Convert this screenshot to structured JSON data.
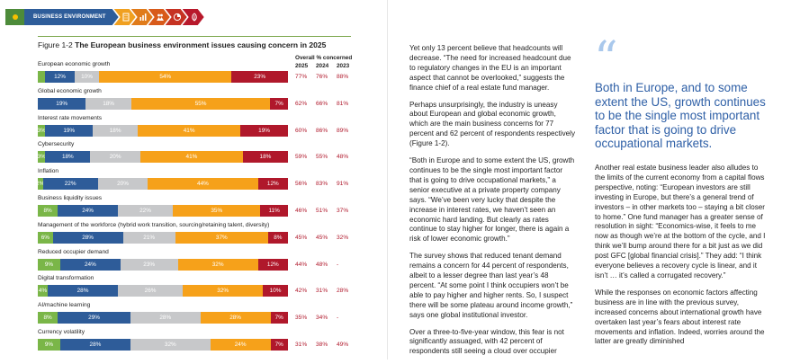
{
  "nav": {
    "label": "BUSINESS ENVIRONMENT",
    "chevrons": [
      {
        "icon": "building-icon",
        "color": "#f0a020"
      },
      {
        "icon": "chart-bars-icon",
        "color": "#e07b1a"
      },
      {
        "icon": "people-icon",
        "color": "#d85a1a"
      },
      {
        "icon": "pie-chart-icon",
        "color": "#c63222"
      },
      {
        "icon": "leaf-icon",
        "color": "#b8182b"
      }
    ]
  },
  "figure": {
    "number": "Figure 1-2",
    "title": "The European business environment issues causing concern in 2025",
    "overall_label": "Overall % concerned",
    "years": [
      "2025",
      "2024",
      "2023"
    ]
  },
  "chart_data": {
    "type": "bar",
    "stacked": true,
    "title": "The European business environment issues causing concern in 2025",
    "segment_colors": [
      "#7ab648",
      "#2e5c99",
      "#c7c8ca",
      "#f6a11a",
      "#b0182b"
    ],
    "categories": [
      {
        "label": "European economic growth",
        "segments": [
          3,
          12,
          10,
          54,
          23
        ],
        "labels": [
          "",
          "12%",
          "10%",
          "54%",
          "23%"
        ],
        "overall": [
          "77%",
          "76%",
          "88%"
        ]
      },
      {
        "label": "Global economic growth",
        "segments": [
          0,
          19,
          18,
          55,
          7
        ],
        "labels": [
          "",
          "19%",
          "18%",
          "55%",
          "7%"
        ],
        "overall": [
          "62%",
          "66%",
          "81%"
        ]
      },
      {
        "label": "Interest rate movements",
        "segments": [
          3,
          19,
          18,
          41,
          19
        ],
        "labels": [
          "3%",
          "19%",
          "18%",
          "41%",
          "19%"
        ],
        "overall": [
          "60%",
          "86%",
          "89%"
        ]
      },
      {
        "label": "Cybersecurity",
        "segments": [
          3,
          18,
          20,
          41,
          18
        ],
        "labels": [
          "3%",
          "18%",
          "20%",
          "41%",
          "18%"
        ],
        "overall": [
          "59%",
          "55%",
          "48%"
        ]
      },
      {
        "label": "Inflation",
        "segments": [
          2,
          22,
          20,
          44,
          12
        ],
        "labels": [
          "2%",
          "22%",
          "20%",
          "44%",
          "12%"
        ],
        "overall": [
          "56%",
          "83%",
          "91%"
        ]
      },
      {
        "label": "Business liquidity issues",
        "segments": [
          8,
          24,
          22,
          35,
          11
        ],
        "labels": [
          "8%",
          "24%",
          "22%",
          "35%",
          "11%"
        ],
        "overall": [
          "46%",
          "51%",
          "37%"
        ]
      },
      {
        "label": "Management of the workforce (hybrid work transition, sourcing/retaining talent, diversity)",
        "segments": [
          6,
          28,
          21,
          37,
          8
        ],
        "labels": [
          "6%",
          "28%",
          "21%",
          "37%",
          "8%"
        ],
        "overall": [
          "45%",
          "45%",
          "32%"
        ]
      },
      {
        "label": "Reduced occupier demand",
        "segments": [
          9,
          24,
          23,
          32,
          12
        ],
        "labels": [
          "9%",
          "24%",
          "23%",
          "32%",
          "12%"
        ],
        "overall": [
          "44%",
          "48%",
          "-"
        ]
      },
      {
        "label": "Digital transformation",
        "segments": [
          4,
          28,
          26,
          32,
          10
        ],
        "labels": [
          "4%",
          "28%",
          "26%",
          "32%",
          "10%"
        ],
        "overall": [
          "42%",
          "31%",
          "28%"
        ]
      },
      {
        "label": "AI/machine learning",
        "segments": [
          8,
          29,
          28,
          28,
          7
        ],
        "labels": [
          "8%",
          "29%",
          "28%",
          "28%",
          "7%"
        ],
        "overall": [
          "35%",
          "34%",
          "-"
        ]
      },
      {
        "label": "Currency volatility",
        "segments": [
          9,
          28,
          32,
          24,
          7
        ],
        "labels": [
          "9%",
          "28%",
          "32%",
          "24%",
          "7%"
        ],
        "overall": [
          "31%",
          "38%",
          "49%"
        ]
      }
    ]
  },
  "text": {
    "col1": [
      "Yet only 13 percent believe that headcounts will decrease. “The need for increased headcount due to regulatory changes in the EU is an important aspect that cannot be overlooked,” suggests the finance chief of a real estate fund manager.",
      "Perhaps unsurprisingly, the industry is uneasy about European and global economic growth, which are the main business concerns for 77 percent and 62 percent of respondents respectively (Figure 1-2).",
      "“Both in Europe and to some extent the US, growth continues to be the single most important factor that is going to drive occupational markets,” a senior executive at a private property company says. “We’ve been very lucky that despite the increase in interest rates, we haven’t seen an economic hard landing. But clearly as rates continue to stay higher for longer, there is again a risk of lower economic growth.”",
      "The survey shows that reduced tenant demand remains a concern for 44 percent of respondents, albeit to a lesser degree than last year’s 48 percent. “At some point I think occupiers won’t be able to pay higher and higher rents. So, I suspect there will be some plateau around income growth,” says one global institutional investor.",
      "Over a three-to-five-year window, this fear is not significantly assuaged, with 42 percent of respondents still seeing a cloud over occupier"
    ],
    "pull_quote": "Both in Europe, and to some extent the US, growth continues to be the single most important factor that is going to drive occupational markets.",
    "col2": [
      "Another real estate business leader also alludes to the limits of the current economy from a capital flows perspective, noting: “European investors are still investing in Europe, but there’s a general trend of investors – in other markets too – staying a bit closer to home.” One fund manager has a greater sense of resolution in sight: “Economics-wise, it feels to me now as though we’re at the bottom of the cycle, and I think we’ll bump around there for a bit just as we did post GFC [global financial crisis].” They add: “I think everyone believes a recovery cycle is linear, and it isn’t … it’s called a corrugated recovery.”",
      "While the responses on economic factors affecting business are in line with the previous survey, increased concerns about international growth have overtaken last year’s fears about interest rate movements and inflation. Indeed, worries around the latter are greatly diminished"
    ]
  }
}
